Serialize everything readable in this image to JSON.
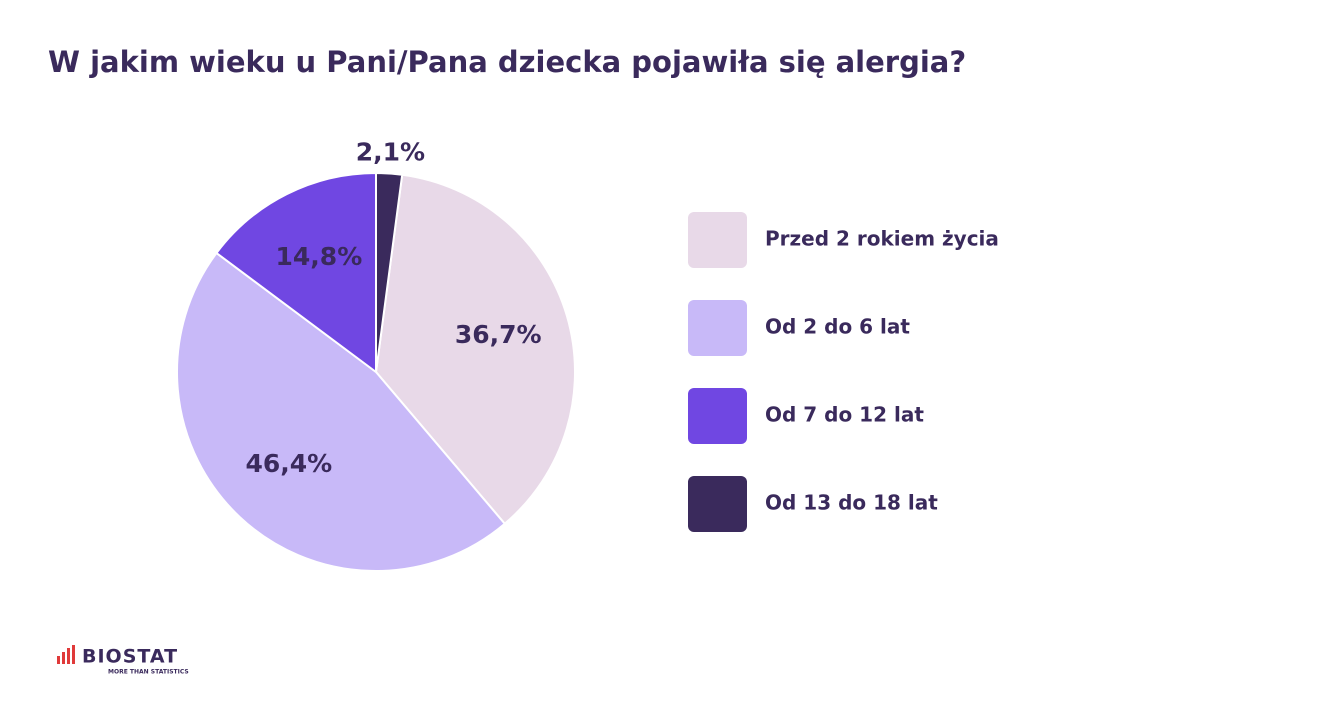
{
  "chart_data": {
    "type": "pie",
    "title": "W jakim wieku u Pani/Pana dziecka pojawiła się alergia?",
    "categories": [
      "Przed 2 rokiem życia",
      "Od 2 do 6 lat",
      "Od 7 do 12 lat",
      "Od 13 do 18 lat"
    ],
    "values": [
      36.7,
      46.4,
      14.8,
      2.1
    ],
    "value_labels": [
      "36,7%",
      "46,4%",
      "14,8%",
      "2,1%"
    ],
    "colors": [
      "#e8d9e8",
      "#c8b9f8",
      "#7047e2",
      "#3a2a5c"
    ],
    "legend": "right"
  },
  "logo": {
    "name": "BIOSTAT",
    "tagline": "MORE THAN STATISTICS"
  }
}
